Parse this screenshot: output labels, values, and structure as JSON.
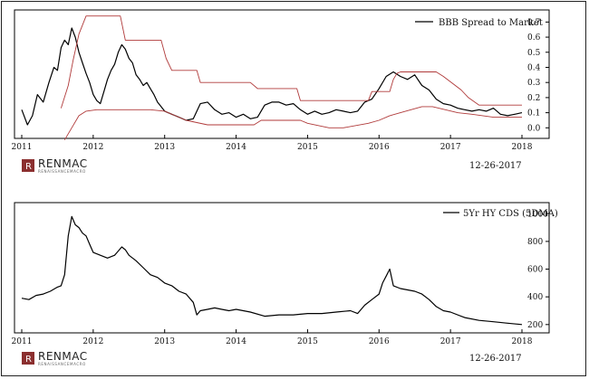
{
  "chart_data": [
    {
      "type": "line",
      "legend_placement": "top-right",
      "xlim": [
        2011,
        2018
      ],
      "ylim": [
        -0.07,
        0.78
      ],
      "x_ticks": [
        "2011",
        "2012",
        "2013",
        "2014",
        "2015",
        "2016",
        "2017",
        "2018"
      ],
      "y_ticks": [
        "0.0",
        "0.1",
        "0.2",
        "0.3",
        "0.4",
        "0.5",
        "0.6",
        "0.7"
      ],
      "grid": false,
      "date_label": "12-26-2017",
      "logo": {
        "main": "RENMAC",
        "sub": "RENAISSANCEMACRO"
      },
      "series": [
        {
          "name": "BBB Spread to Market",
          "color": "#000000",
          "x": [
            2011.0,
            2011.08,
            2011.15,
            2011.22,
            2011.3,
            2011.38,
            2011.45,
            2011.5,
            2011.55,
            2011.6,
            2011.65,
            2011.7,
            2011.75,
            2011.8,
            2011.85,
            2011.9,
            2011.95,
            2012.0,
            2012.05,
            2012.1,
            2012.15,
            2012.2,
            2012.25,
            2012.3,
            2012.35,
            2012.4,
            2012.45,
            2012.5,
            2012.55,
            2012.6,
            2012.65,
            2012.7,
            2012.75,
            2012.8,
            2012.85,
            2012.9,
            2012.95,
            2013.0,
            2013.1,
            2013.2,
            2013.3,
            2013.4,
            2013.5,
            2013.6,
            2013.7,
            2013.8,
            2013.9,
            2014.0,
            2014.1,
            2014.2,
            2014.3,
            2014.4,
            2014.5,
            2014.6,
            2014.7,
            2014.8,
            2014.9,
            2015.0,
            2015.1,
            2015.2,
            2015.3,
            2015.4,
            2015.5,
            2015.6,
            2015.7,
            2015.8,
            2015.9,
            2016.0,
            2016.1,
            2016.2,
            2016.3,
            2016.4,
            2016.5,
            2016.6,
            2016.7,
            2016.8,
            2016.9,
            2017.0,
            2017.1,
            2017.2,
            2017.3,
            2017.4,
            2017.5,
            2017.6,
            2017.7,
            2017.8,
            2017.9,
            2018.0
          ],
          "y": [
            0.12,
            0.02,
            0.08,
            0.22,
            0.17,
            0.3,
            0.4,
            0.38,
            0.53,
            0.58,
            0.55,
            0.66,
            0.6,
            0.5,
            0.43,
            0.36,
            0.3,
            0.22,
            0.18,
            0.16,
            0.24,
            0.32,
            0.38,
            0.42,
            0.5,
            0.55,
            0.52,
            0.46,
            0.43,
            0.35,
            0.32,
            0.28,
            0.3,
            0.26,
            0.22,
            0.17,
            0.14,
            0.11,
            0.09,
            0.07,
            0.05,
            0.06,
            0.16,
            0.17,
            0.12,
            0.09,
            0.1,
            0.07,
            0.09,
            0.06,
            0.07,
            0.15,
            0.17,
            0.17,
            0.15,
            0.16,
            0.12,
            0.09,
            0.11,
            0.09,
            0.1,
            0.12,
            0.11,
            0.1,
            0.11,
            0.17,
            0.19,
            0.26,
            0.34,
            0.37,
            0.34,
            0.32,
            0.35,
            0.28,
            0.25,
            0.19,
            0.16,
            0.15,
            0.13,
            0.12,
            0.11,
            0.12,
            0.11,
            0.13,
            0.09,
            0.08,
            0.09,
            0.1
          ]
        },
        {
          "name": "",
          "color": "#b03a3a",
          "role": "upper band",
          "x": [
            2011.55,
            2011.65,
            2011.72,
            2011.8,
            2011.9,
            2012.38,
            2012.45,
            2012.95,
            2013.02,
            2013.1,
            2013.45,
            2013.5,
            2014.2,
            2014.3,
            2014.85,
            2014.9,
            2015.85,
            2015.9,
            2016.15,
            2016.2,
            2016.25,
            2016.3,
            2016.8,
            2016.9,
            2017.15,
            2017.25,
            2017.4,
            2017.5,
            2018.0
          ],
          "y": [
            0.13,
            0.28,
            0.45,
            0.62,
            0.74,
            0.74,
            0.58,
            0.58,
            0.46,
            0.38,
            0.38,
            0.3,
            0.3,
            0.26,
            0.26,
            0.18,
            0.18,
            0.24,
            0.24,
            0.32,
            0.36,
            0.37,
            0.37,
            0.34,
            0.25,
            0.2,
            0.15,
            0.15,
            0.15
          ]
        },
        {
          "name": "",
          "color": "#b03a3a",
          "role": "lower band",
          "x": [
            2011.6,
            2011.7,
            2011.8,
            2011.9,
            2012.05,
            2012.5,
            2012.8,
            2013.0,
            2013.3,
            2013.6,
            2014.25,
            2014.35,
            2014.9,
            2015.0,
            2015.3,
            2015.5,
            2015.85,
            2016.0,
            2016.15,
            2016.3,
            2016.6,
            2016.75,
            2017.1,
            2017.3,
            2017.45,
            2017.6,
            2018.0
          ],
          "y": [
            -0.08,
            0.0,
            0.08,
            0.11,
            0.12,
            0.12,
            0.12,
            0.11,
            0.05,
            0.02,
            0.02,
            0.05,
            0.05,
            0.03,
            0.0,
            0.0,
            0.03,
            0.05,
            0.08,
            0.1,
            0.14,
            0.14,
            0.1,
            0.09,
            0.08,
            0.07,
            0.07
          ]
        }
      ]
    },
    {
      "type": "line",
      "legend_placement": "top-right",
      "xlim": [
        2011,
        2018
      ],
      "ylim": [
        140,
        1080
      ],
      "x_ticks": [
        "2011",
        "2012",
        "2013",
        "2014",
        "2015",
        "2016",
        "2017",
        "2018"
      ],
      "y_ticks": [
        "200",
        "400",
        "600",
        "800",
        "1000"
      ],
      "grid": false,
      "date_label": "12-26-2017",
      "logo": {
        "main": "RENMAC",
        "sub": "RENAISSANCEMACRO"
      },
      "series": [
        {
          "name": "5Yr HY CDS (5DMA)",
          "color": "#000000",
          "x": [
            2011.0,
            2011.1,
            2011.2,
            2011.3,
            2011.4,
            2011.5,
            2011.55,
            2011.6,
            2011.65,
            2011.7,
            2011.75,
            2011.8,
            2011.85,
            2011.9,
            2011.95,
            2012.0,
            2012.1,
            2012.2,
            2012.3,
            2012.4,
            2012.45,
            2012.5,
            2012.6,
            2012.7,
            2012.8,
            2012.9,
            2013.0,
            2013.1,
            2013.2,
            2013.3,
            2013.4,
            2013.45,
            2013.5,
            2013.6,
            2013.7,
            2013.8,
            2013.9,
            2014.0,
            2014.2,
            2014.4,
            2014.6,
            2014.8,
            2015.0,
            2015.2,
            2015.4,
            2015.6,
            2015.7,
            2015.8,
            2015.9,
            2016.0,
            2016.05,
            2016.1,
            2016.15,
            2016.2,
            2016.3,
            2016.4,
            2016.5,
            2016.6,
            2016.7,
            2016.8,
            2016.9,
            2017.0,
            2017.2,
            2017.4,
            2017.6,
            2017.8,
            2018.0
          ],
          "y": [
            390,
            380,
            410,
            420,
            440,
            470,
            480,
            560,
            840,
            980,
            920,
            900,
            860,
            840,
            780,
            720,
            700,
            680,
            700,
            760,
            740,
            700,
            660,
            610,
            560,
            540,
            500,
            480,
            440,
            420,
            360,
            270,
            300,
            310,
            320,
            310,
            300,
            310,
            290,
            260,
            270,
            270,
            280,
            280,
            290,
            300,
            280,
            340,
            380,
            420,
            500,
            550,
            600,
            480,
            460,
            450,
            440,
            420,
            380,
            330,
            300,
            290,
            250,
            230,
            220,
            210,
            200
          ]
        }
      ]
    }
  ]
}
